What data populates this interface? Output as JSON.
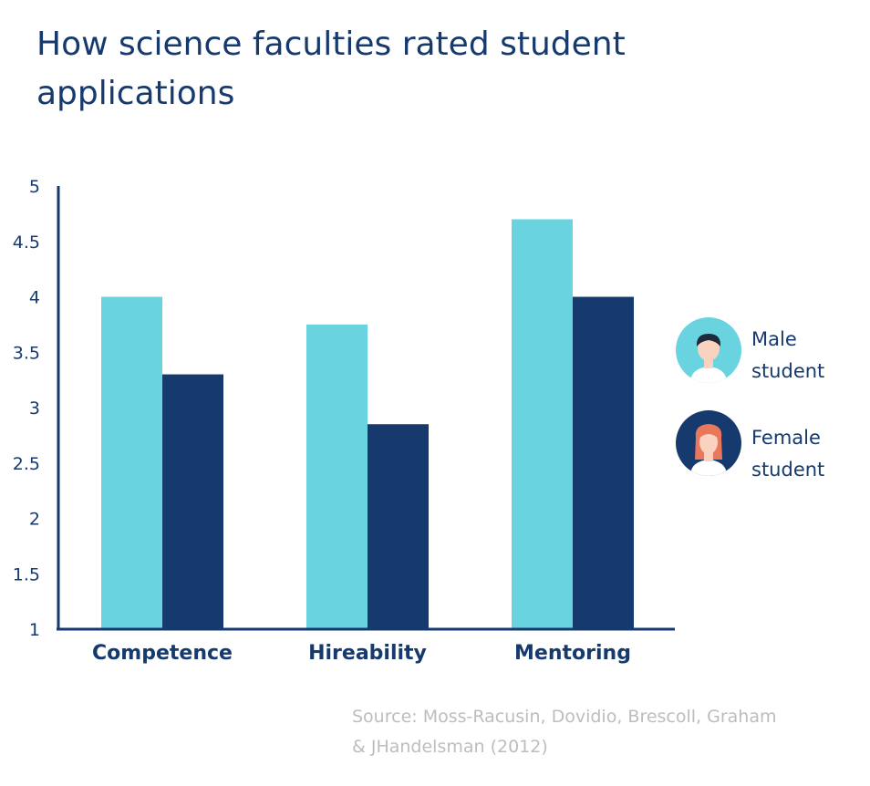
{
  "chart_data": {
    "type": "bar",
    "title": "How science faculties rated student applications",
    "categories": [
      "Competence",
      "Hireability",
      "Mentoring"
    ],
    "series": [
      {
        "name": "Male student",
        "legend_lines": [
          "Male",
          "student"
        ],
        "color": "#69d4e0",
        "values": [
          4.0,
          3.75,
          4.7
        ]
      },
      {
        "name": "Female student",
        "legend_lines": [
          "Female",
          "student"
        ],
        "color": "#163a6e",
        "values": [
          3.3,
          2.85,
          4.0
        ]
      }
    ],
    "ylim": [
      1,
      5
    ],
    "yticks": [
      "1",
      "1.5",
      "2",
      "2.5",
      "3",
      "3.5",
      "4",
      "4.5",
      "5"
    ],
    "xlabel": "",
    "ylabel": "",
    "legend_position": "right",
    "source": "Source: Moss-Racusin, Dovidio, Brescoll, Graham & JHandelsman (2012)"
  },
  "colors": {
    "axis": "#163a6e",
    "text": "#163a6e",
    "source_text": "#bdbdbd",
    "skin": "#f9d2c0",
    "male_hair": "#1f2a3a",
    "female_hair": "#e9775b"
  }
}
